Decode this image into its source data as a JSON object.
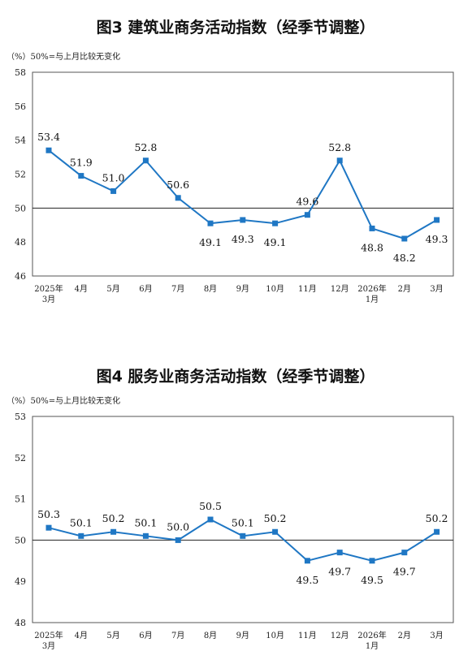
{
  "chart_data": [
    {
      "type": "line",
      "title": "图3  建筑业商务活动指数（经季节调整）",
      "note": "（%）50%=与上月比较无变化",
      "categories": [
        "2025年\n3月",
        "4月",
        "5月",
        "6月",
        "7月",
        "8月",
        "9月",
        "10月",
        "11月",
        "12月",
        "2026年\n1月",
        "2月",
        "3月"
      ],
      "values": [
        53.4,
        51.9,
        51.0,
        52.8,
        50.6,
        49.1,
        49.3,
        49.1,
        49.6,
        52.8,
        48.8,
        48.2,
        49.3
      ],
      "data_labels": [
        "53.4",
        "51.9",
        "51.0",
        "52.8",
        "50.6",
        "49.1",
        "49.3",
        "49.1",
        "49.6",
        "52.8",
        "48.8",
        "48.2",
        "49.3"
      ],
      "ylim": [
        46,
        58
      ],
      "yticks": [
        46,
        48,
        50,
        52,
        54,
        56,
        58
      ],
      "reference_line": 50,
      "color": "#1f77c4",
      "grid": false
    },
    {
      "type": "line",
      "title": "图4  服务业商务活动指数（经季节调整）",
      "note": "（%）50%=与上月比较无变化",
      "categories": [
        "2025年\n3月",
        "4月",
        "5月",
        "6月",
        "7月",
        "8月",
        "9月",
        "10月",
        "11月",
        "12月",
        "2026年\n1月",
        "2月",
        "3月"
      ],
      "values": [
        50.3,
        50.1,
        50.2,
        50.1,
        50.0,
        50.5,
        50.1,
        50.2,
        49.5,
        49.7,
        49.5,
        49.7,
        50.2
      ],
      "data_labels": [
        "50.3",
        "50.1",
        "50.2",
        "50.1",
        "50.0",
        "50.5",
        "50.1",
        "50.2",
        "49.5",
        "49.7",
        "49.5",
        "49.7",
        "50.2"
      ],
      "ylim": [
        48,
        53
      ],
      "yticks": [
        48,
        49,
        50,
        51,
        52,
        53
      ],
      "reference_line": 50,
      "color": "#1f77c4",
      "grid": false
    }
  ]
}
